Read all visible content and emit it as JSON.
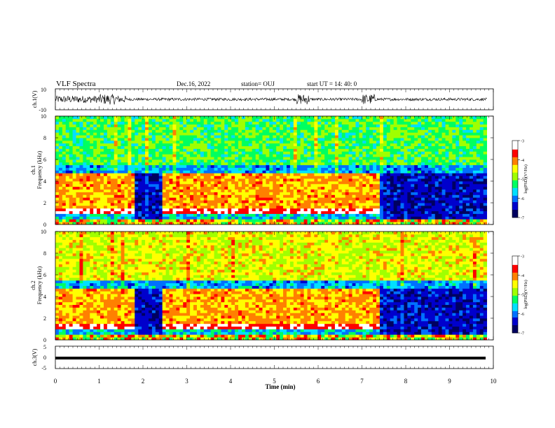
{
  "header": {
    "title": "VLF Spectra",
    "date": "Dec.16, 2022",
    "station": "station= OUJ",
    "start": "start  UT  =   14: 40: 0"
  },
  "chart_data": [
    {
      "type": "line",
      "panel": "ch1-waveform",
      "ylabel": "ch.1(V)",
      "ylim": [
        -10,
        10
      ],
      "yticks": [
        10,
        -10
      ],
      "baseline": 0,
      "amplitude_note_values": [
        5,
        3
      ]
    },
    {
      "type": "heatmap",
      "panel": "ch1-spectrogram",
      "ylabel": "ch.1 Frequency (kHz)",
      "ylabel_line1": "ch.1",
      "ylabel_line2": "Frequency (kHz)",
      "ylim": [
        0,
        10
      ],
      "yticks": [
        0,
        2,
        4,
        6,
        8,
        10
      ],
      "colorbar": {
        "ticks": [
          "-3",
          "-4",
          "-5",
          "-6",
          "-7"
        ],
        "label": "log(PSD)(V²/Hz)",
        "range": [
          -7,
          -3
        ]
      },
      "gaps_min": [
        [
          1.82,
          2.48
        ],
        [
          7.42,
          9.85
        ]
      ]
    },
    {
      "type": "heatmap",
      "panel": "ch2-spectrogram",
      "ylabel": "ch.2 Frequency (kHz)",
      "ylabel_line1": "ch.2",
      "ylabel_line2": "Frequency (kHz)",
      "ylim": [
        0,
        10
      ],
      "yticks": [
        0,
        2,
        4,
        6,
        8,
        10
      ],
      "colorbar": {
        "ticks": [
          "-3",
          "-4",
          "-5",
          "-6",
          "-7"
        ],
        "label": "log(PSD)(V²/Hz)",
        "range": [
          -7,
          -3
        ]
      },
      "gaps_min": [
        [
          1.82,
          2.48
        ],
        [
          7.42,
          9.85
        ]
      ]
    },
    {
      "type": "line",
      "panel": "ch3-waveform",
      "ylabel": "ch.3(V)",
      "ylim": [
        -5,
        5
      ],
      "yticks": [
        5,
        0,
        -5
      ],
      "constant_value": -0.5
    }
  ],
  "xaxis": {
    "label": "Time  (min)",
    "ticks": [
      "0",
      "1",
      "2",
      "3",
      "4",
      "5",
      "6",
      "7",
      "8",
      "9",
      "10"
    ],
    "range": [
      0,
      10
    ],
    "data_end": 9.85
  },
  "colors": {
    "spectrum_scale": [
      "#000060",
      "#0000cc",
      "#0070ff",
      "#00e0ff",
      "#00ff60",
      "#a0ff00",
      "#ffff00",
      "#ff8000",
      "#ff0000",
      "#ffffff"
    ]
  }
}
